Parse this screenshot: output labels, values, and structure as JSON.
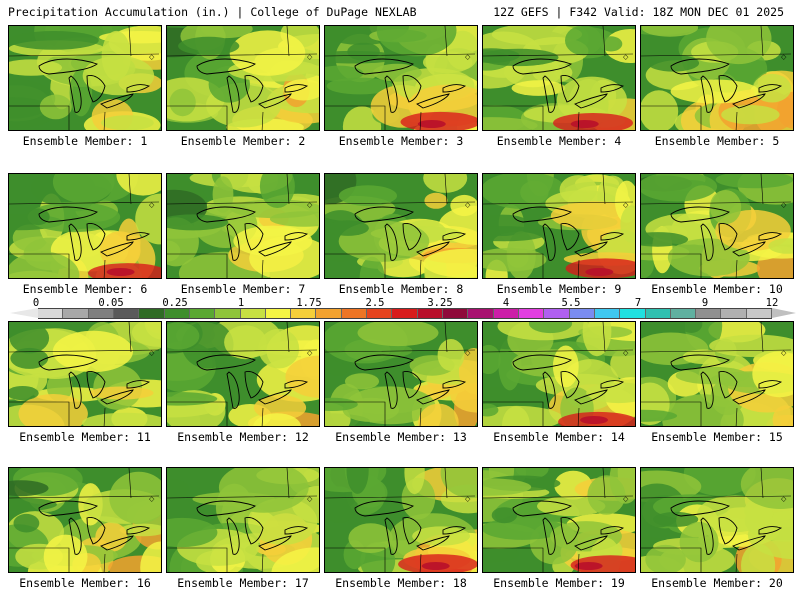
{
  "header": {
    "title": "Precipitation Accumulation (in.) | College of DuPage NEXLAB",
    "run_info": "12Z GEFS | F342 Valid: 18Z MON DEC 01 2025"
  },
  "members": [
    {
      "label": "Ensemble Member: 1"
    },
    {
      "label": "Ensemble Member: 2"
    },
    {
      "label": "Ensemble Member: 3"
    },
    {
      "label": "Ensemble Member: 4"
    },
    {
      "label": "Ensemble Member: 5"
    },
    {
      "label": "Ensemble Member: 6"
    },
    {
      "label": "Ensemble Member: 7"
    },
    {
      "label": "Ensemble Member: 8"
    },
    {
      "label": "Ensemble Member: 9"
    },
    {
      "label": "Ensemble Member: 10"
    },
    {
      "label": "Ensemble Member: 11"
    },
    {
      "label": "Ensemble Member: 12"
    },
    {
      "label": "Ensemble Member: 13"
    },
    {
      "label": "Ensemble Member: 14"
    },
    {
      "label": "Ensemble Member: 15"
    },
    {
      "label": "Ensemble Member: 16"
    },
    {
      "label": "Ensemble Member: 17"
    },
    {
      "label": "Ensemble Member: 18"
    },
    {
      "label": "Ensemble Member: 19"
    },
    {
      "label": "Ensemble Member: 20"
    }
  ],
  "colorbar": {
    "labels": [
      "0",
      "0.05",
      "0.25",
      "1",
      "1.75",
      "2.5",
      "3.25",
      "4",
      "5.5",
      "7",
      "9",
      "12"
    ],
    "colors": [
      "#d9d9d9",
      "#a8a8a8",
      "#7f7f7f",
      "#5a5a5a",
      "#2f6b25",
      "#3e8e2c",
      "#5aa832",
      "#8fc43a",
      "#c7e042",
      "#f5f545",
      "#f5cf3a",
      "#f2a22f",
      "#ee7525",
      "#e6441e",
      "#d81c1c",
      "#b80f2a",
      "#8f0a3a",
      "#a81070",
      "#cc1ea8",
      "#e23ee0",
      "#b060f0",
      "#7a8cf0",
      "#40c8f0",
      "#20e0e0",
      "#30c0b0",
      "#60b0a0",
      "#909090",
      "#b0b0b0",
      "#c8c8c8"
    ]
  }
}
